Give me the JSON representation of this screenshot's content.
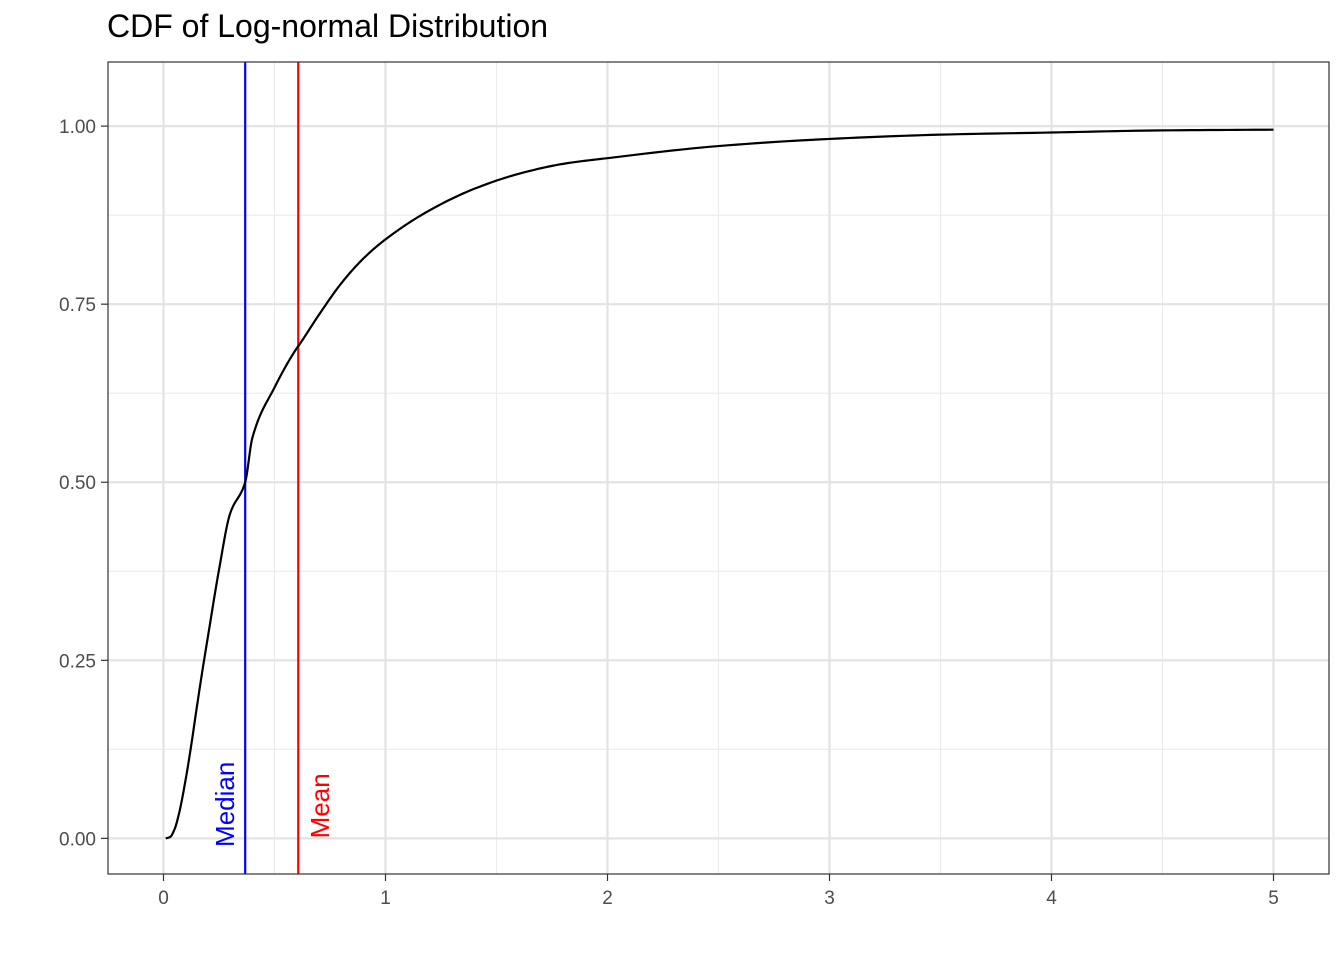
{
  "chart_data": {
    "type": "line",
    "title": "CDF of Log-normal Distribution",
    "xlabel": "",
    "ylabel": "",
    "xlim": [
      -0.25,
      5.25
    ],
    "ylim": [
      -0.05,
      1.09
    ],
    "x_ticks": [
      0,
      1,
      2,
      3,
      4,
      5
    ],
    "x_tick_labels": [
      "0",
      "1",
      "2",
      "3",
      "4",
      "5"
    ],
    "x_minor_ticks": [
      0.5,
      1.5,
      2.5,
      3.5,
      4.5
    ],
    "y_ticks": [
      0,
      0.25,
      0.5,
      0.75,
      1
    ],
    "y_tick_labels": [
      "0.00",
      "0.25",
      "0.50",
      "0.75",
      "1.00"
    ],
    "y_minor_ticks": [
      0.125,
      0.375,
      0.625,
      0.875
    ],
    "grid": true,
    "series": [
      {
        "color": "#000000",
        "x": [
          0.01,
          0.03,
          0.05,
          0.07,
          0.1,
          0.125,
          0.15,
          0.175,
          0.2,
          0.25,
          0.3,
          0.368,
          0.4,
          0.5,
          0.6,
          0.607,
          0.7,
          0.8,
          0.9,
          1.0,
          1.2,
          1.4,
          1.6,
          1.8,
          2.0,
          2.5,
          3.0,
          3.5,
          4.0,
          4.5,
          5.0
        ],
        "y": [
          0.0,
          0.002,
          0.013,
          0.035,
          0.083,
          0.131,
          0.184,
          0.235,
          0.283,
          0.377,
          0.456,
          0.5,
          0.562,
          0.633,
          0.688,
          0.691,
          0.735,
          0.779,
          0.814,
          0.841,
          0.882,
          0.912,
          0.933,
          0.947,
          0.955,
          0.972,
          0.982,
          0.988,
          0.991,
          0.994,
          0.995
        ]
      }
    ],
    "reference_lines": [
      {
        "name": "Median",
        "x": 0.368,
        "color": "#0000ff"
      },
      {
        "name": "Mean",
        "x": 0.607,
        "color": "#ff0000"
      }
    ]
  }
}
